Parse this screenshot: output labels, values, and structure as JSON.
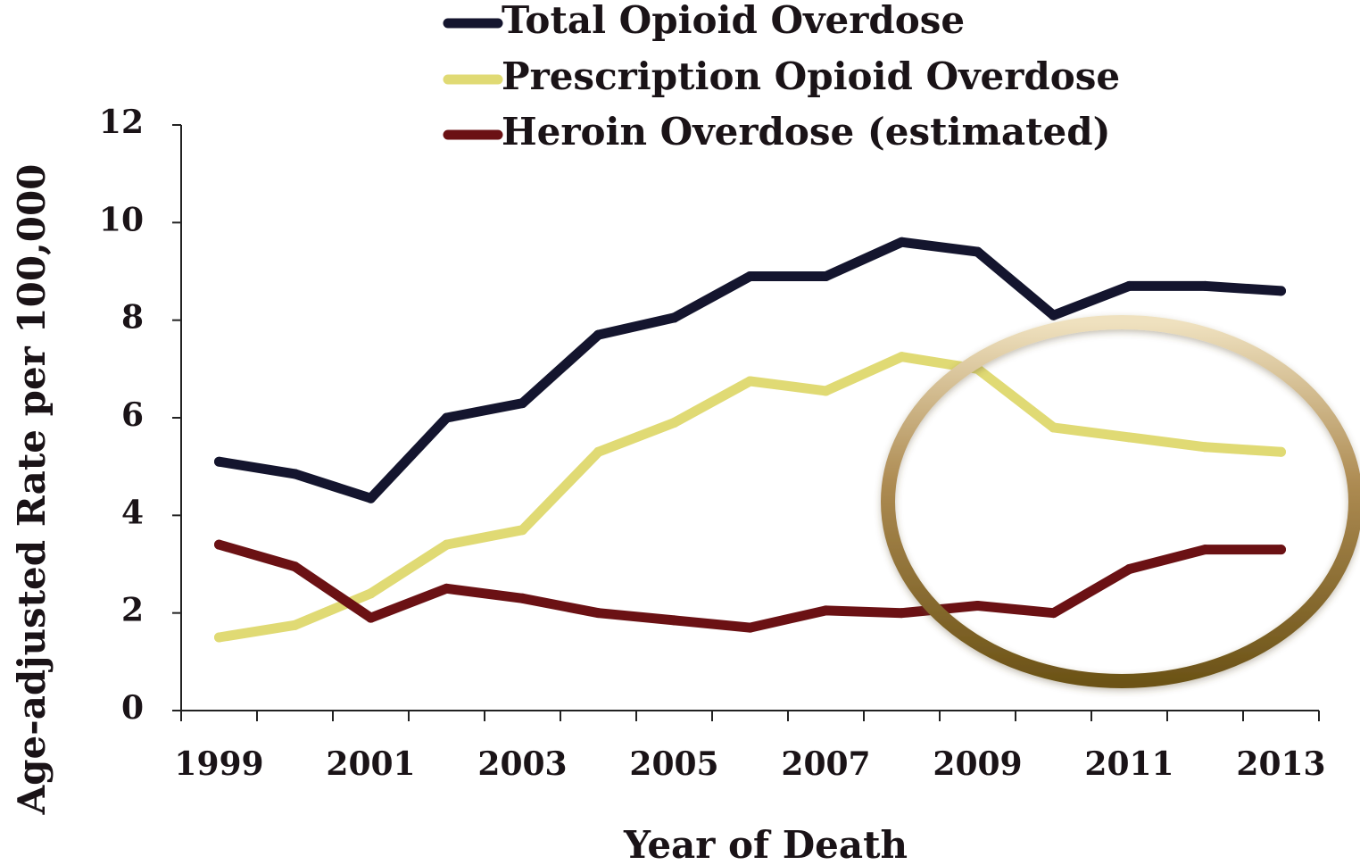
{
  "chart_data": {
    "type": "line",
    "title": "",
    "xlabel": "Year of Death",
    "ylabel": "Age-adjusted Rate per 100,000",
    "ylim": [
      0,
      12
    ],
    "y_ticks": [
      0,
      2,
      4,
      6,
      8,
      10,
      12
    ],
    "x_tick_labels": [
      "1999",
      "2001",
      "2003",
      "2005",
      "2007",
      "2009",
      "2011",
      "2013"
    ],
    "x": [
      1999,
      2000,
      2001,
      2002,
      2003,
      2004,
      2005,
      2006,
      2007,
      2008,
      2009,
      2010,
      2011,
      2012,
      2013
    ],
    "xlim": [
      1998.5,
      2013.5
    ],
    "grid": false,
    "legend_position": "top",
    "annotation": "ellipse highlighting 2009-2013",
    "series": [
      {
        "name": "Total Opioid Overdose",
        "color": "#14152e",
        "values": [
          5.1,
          4.85,
          4.35,
          6.0,
          6.3,
          7.7,
          8.05,
          8.9,
          8.9,
          9.6,
          9.4,
          8.1,
          8.7,
          8.7,
          8.6
        ]
      },
      {
        "name": "Prescription Opioid Overdose",
        "color": "#e0da74",
        "values": [
          1.5,
          1.75,
          2.4,
          3.4,
          3.7,
          5.3,
          5.9,
          6.75,
          6.55,
          7.25,
          7.0,
          5.8,
          5.6,
          5.4,
          5.3
        ]
      },
      {
        "name": "Heroin Overdose (estimated)",
        "color": "#6b1114",
        "values": [
          3.4,
          2.95,
          1.9,
          2.5,
          2.3,
          2.0,
          1.85,
          1.7,
          2.05,
          2.0,
          2.15,
          2.0,
          2.9,
          3.3,
          3.3
        ]
      }
    ]
  }
}
